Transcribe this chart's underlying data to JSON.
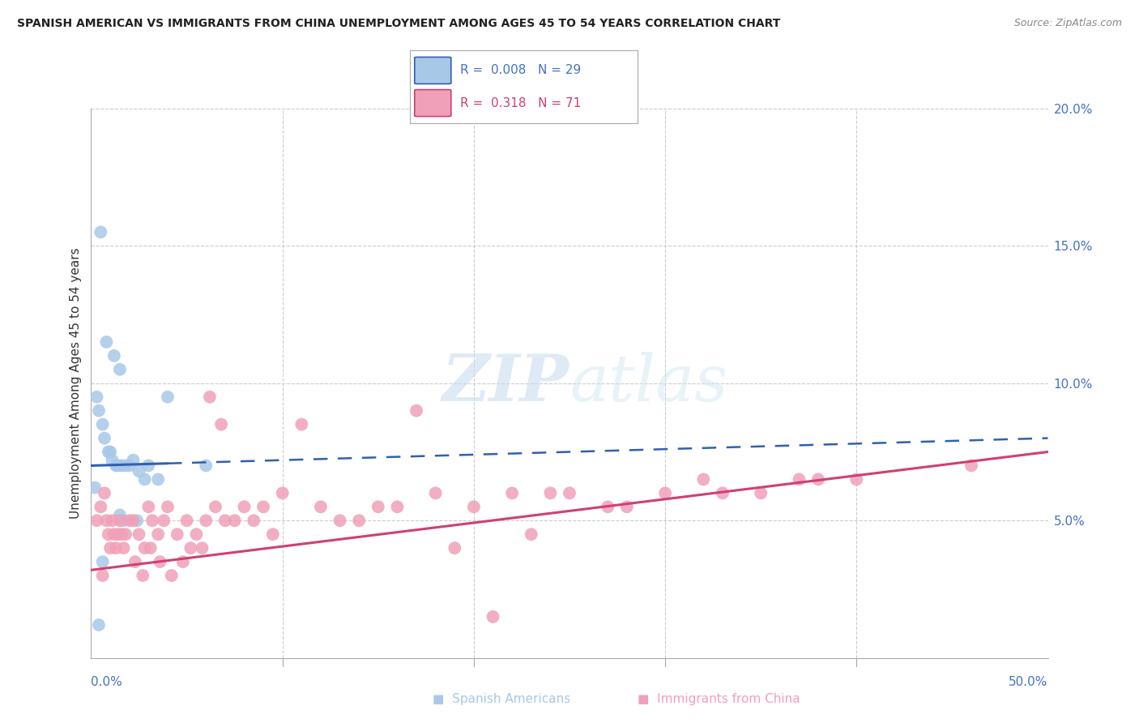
{
  "title": "SPANISH AMERICAN VS IMMIGRANTS FROM CHINA UNEMPLOYMENT AMONG AGES 45 TO 54 YEARS CORRELATION CHART",
  "source": "Source: ZipAtlas.com",
  "ylabel": "Unemployment Among Ages 45 to 54 years",
  "legend_blue_r": "0.008",
  "legend_blue_n": "29",
  "legend_pink_r": "0.318",
  "legend_pink_n": "71",
  "blue_color": "#A8C8E8",
  "pink_color": "#F0A0B8",
  "blue_line_color": "#3060B0",
  "pink_line_color": "#D04070",
  "watermark_color": "#C8DCF0",
  "xlim": [
    0.0,
    50.0
  ],
  "ylim": [
    0.0,
    20.0
  ],
  "blue_scatter_x": [
    0.3,
    0.4,
    0.5,
    0.6,
    0.7,
    0.8,
    0.9,
    1.0,
    1.1,
    1.2,
    1.3,
    1.4,
    1.5,
    1.6,
    1.7,
    1.8,
    2.0,
    2.2,
    2.5,
    2.8,
    3.0,
    3.5,
    4.0,
    0.2,
    0.6,
    1.5,
    2.4,
    6.0,
    0.4
  ],
  "blue_scatter_y": [
    9.5,
    9.0,
    15.5,
    8.5,
    8.0,
    11.5,
    7.5,
    7.5,
    7.2,
    11.0,
    7.0,
    7.0,
    10.5,
    7.0,
    5.0,
    7.0,
    7.0,
    7.2,
    6.8,
    6.5,
    7.0,
    6.5,
    9.5,
    6.2,
    3.5,
    5.2,
    5.0,
    7.0,
    1.2
  ],
  "pink_scatter_x": [
    0.3,
    0.5,
    0.6,
    0.7,
    0.8,
    0.9,
    1.0,
    1.1,
    1.2,
    1.3,
    1.4,
    1.5,
    1.6,
    1.7,
    1.8,
    2.0,
    2.2,
    2.3,
    2.5,
    2.7,
    2.8,
    3.0,
    3.1,
    3.2,
    3.5,
    3.6,
    3.8,
    4.0,
    4.2,
    4.5,
    4.8,
    5.0,
    5.2,
    5.5,
    5.8,
    6.0,
    6.2,
    6.5,
    6.8,
    7.0,
    7.5,
    8.0,
    8.5,
    9.0,
    9.5,
    10.0,
    11.0,
    12.0,
    13.0,
    14.0,
    15.0,
    16.0,
    17.0,
    18.0,
    19.0,
    20.0,
    21.0,
    22.0,
    23.0,
    24.0,
    25.0,
    27.0,
    28.0,
    30.0,
    32.0,
    33.0,
    35.0,
    37.0,
    38.0,
    40.0,
    46.0
  ],
  "pink_scatter_y": [
    5.0,
    5.5,
    3.0,
    6.0,
    5.0,
    4.5,
    4.0,
    5.0,
    4.5,
    4.0,
    4.5,
    5.0,
    4.5,
    4.0,
    4.5,
    5.0,
    5.0,
    3.5,
    4.5,
    3.0,
    4.0,
    5.5,
    4.0,
    5.0,
    4.5,
    3.5,
    5.0,
    5.5,
    3.0,
    4.5,
    3.5,
    5.0,
    4.0,
    4.5,
    4.0,
    5.0,
    9.5,
    5.5,
    8.5,
    5.0,
    5.0,
    5.5,
    5.0,
    5.5,
    4.5,
    6.0,
    8.5,
    5.5,
    5.0,
    5.0,
    5.5,
    5.5,
    9.0,
    6.0,
    4.0,
    5.5,
    1.5,
    6.0,
    4.5,
    6.0,
    6.0,
    5.5,
    5.5,
    6.0,
    6.5,
    6.0,
    6.0,
    6.5,
    6.5,
    6.5,
    7.0
  ],
  "blue_line_x0": 0.0,
  "blue_line_y0": 7.0,
  "blue_line_x1": 50.0,
  "blue_line_y1": 8.0,
  "pink_line_x0": 0.0,
  "pink_line_y0": 3.2,
  "pink_line_x1": 50.0,
  "pink_line_y1": 7.5
}
